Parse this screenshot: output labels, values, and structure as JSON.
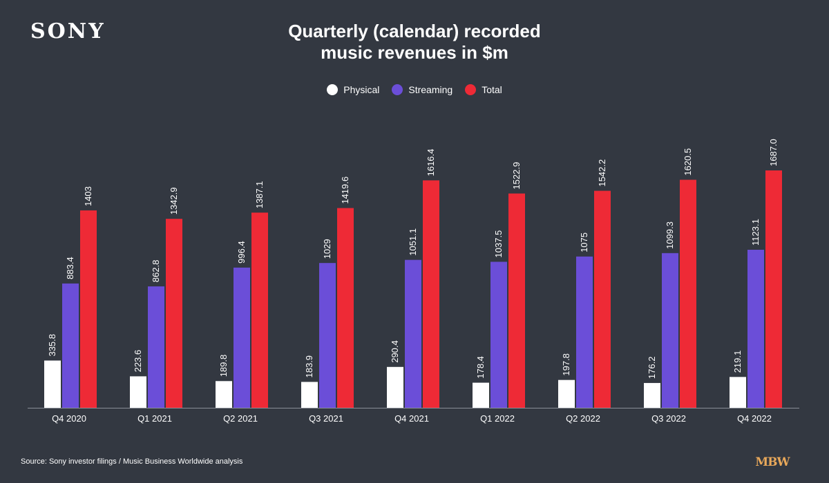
{
  "logo": "SONY",
  "title_lines": [
    "Quarterly (calendar) recorded",
    "music revenues in $m"
  ],
  "source": "Source: Sony investor filings / Music Business Worldwide analysis",
  "mbw_logo": "MBW",
  "colors": {
    "background": "#333841",
    "physical": "#ffffff",
    "streaming": "#6b4ed8",
    "total": "#ee2a36",
    "axis": "#8a8f98"
  },
  "chart_data": {
    "type": "bar",
    "title": "Quarterly (calendar) recorded music revenues in $m",
    "categories": [
      "Q4 2020",
      "Q1 2021",
      "Q2 2021",
      "Q3 2021",
      "Q4 2021",
      "Q1 2022",
      "Q2 2022",
      "Q3 2022",
      "Q4 2022"
    ],
    "series": [
      {
        "name": "Physical",
        "color": "#ffffff",
        "values": [
          335.8,
          223.6,
          189.8,
          183.9,
          290.4,
          178.4,
          197.8,
          176.2,
          219.1
        ],
        "labels": [
          "335.8",
          "223.6",
          "189.8",
          "183.9",
          "290.4",
          "178.4",
          "197.8",
          "176.2",
          "219.1"
        ]
      },
      {
        "name": "Streaming",
        "color": "#6b4ed8",
        "values": [
          883.4,
          862.8,
          996.4,
          1029,
          1051.1,
          1037.5,
          1075,
          1099.3,
          1123.1
        ],
        "labels": [
          "883.4",
          "862.8",
          "996.4",
          "1029",
          "1051.1",
          "1037.5",
          "1075",
          "1099.3",
          "1123.1"
        ]
      },
      {
        "name": "Total",
        "color": "#ee2a36",
        "values": [
          1403,
          1342.9,
          1387.1,
          1419.6,
          1616.4,
          1522.9,
          1542.2,
          1620.5,
          1687.0
        ],
        "labels": [
          "1403",
          "1342.9",
          "1387.1",
          "1419.6",
          "1616.4",
          "1522.9",
          "1542.2",
          "1620.5",
          "1687.0"
        ]
      }
    ],
    "ylim": [
      0,
      1750
    ],
    "legend": "top-center",
    "grid": false
  }
}
